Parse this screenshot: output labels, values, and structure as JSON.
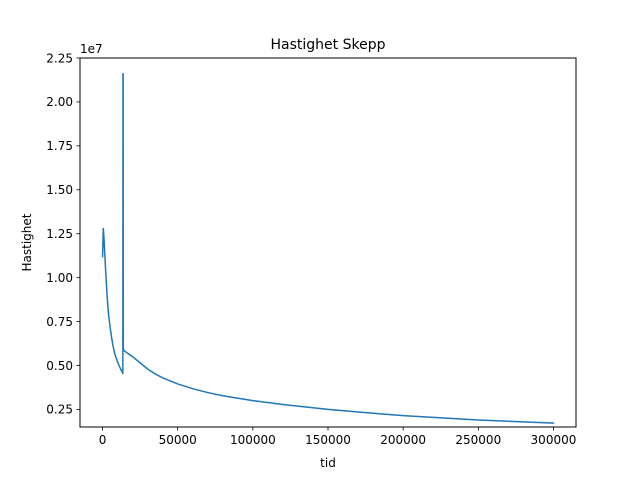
{
  "chart_data": {
    "type": "line",
    "title": "Hastighet Skepp",
    "xlabel": "tid",
    "ylabel": "Hastighet",
    "y_offset_label": "1e7",
    "xlim": [
      -15000,
      315000
    ],
    "ylim": [
      1500000,
      22500000
    ],
    "x_ticks": [
      0,
      50000,
      100000,
      150000,
      200000,
      250000,
      300000
    ],
    "x_tick_labels": [
      "0",
      "50000",
      "100000",
      "150000",
      "200000",
      "250000",
      "300000"
    ],
    "y_ticks": [
      2500000,
      5000000,
      7500000,
      10000000,
      12500000,
      15000000,
      17500000,
      20000000,
      22500000
    ],
    "y_tick_labels": [
      "0.25",
      "0.50",
      "0.75",
      "1.00",
      "1.25",
      "1.50",
      "1.75",
      "2.00",
      "2.25"
    ],
    "grid": false,
    "series": [
      {
        "color": "#1f77b4",
        "x": [
          0,
          500,
          1000,
          2000,
          3000,
          4000,
          5000,
          6000,
          7000,
          8000,
          10000,
          12000,
          13500,
          13600,
          13700,
          13800,
          15000,
          20000,
          25000,
          30000,
          35000,
          40000,
          50000,
          60000,
          70000,
          80000,
          100000,
          120000,
          150000,
          180000,
          200000,
          250000,
          300000
        ],
        "y": [
          11200000,
          12800000,
          12200000,
          10500000,
          9000000,
          7900000,
          7200000,
          6600000,
          6100000,
          5700000,
          5200000,
          4800000,
          4550000,
          21600000,
          21600000,
          5900000,
          5800000,
          5500000,
          5150000,
          4800000,
          4520000,
          4300000,
          3950000,
          3680000,
          3460000,
          3280000,
          3000000,
          2780000,
          2500000,
          2280000,
          2150000,
          1900000,
          1720000
        ]
      }
    ]
  }
}
